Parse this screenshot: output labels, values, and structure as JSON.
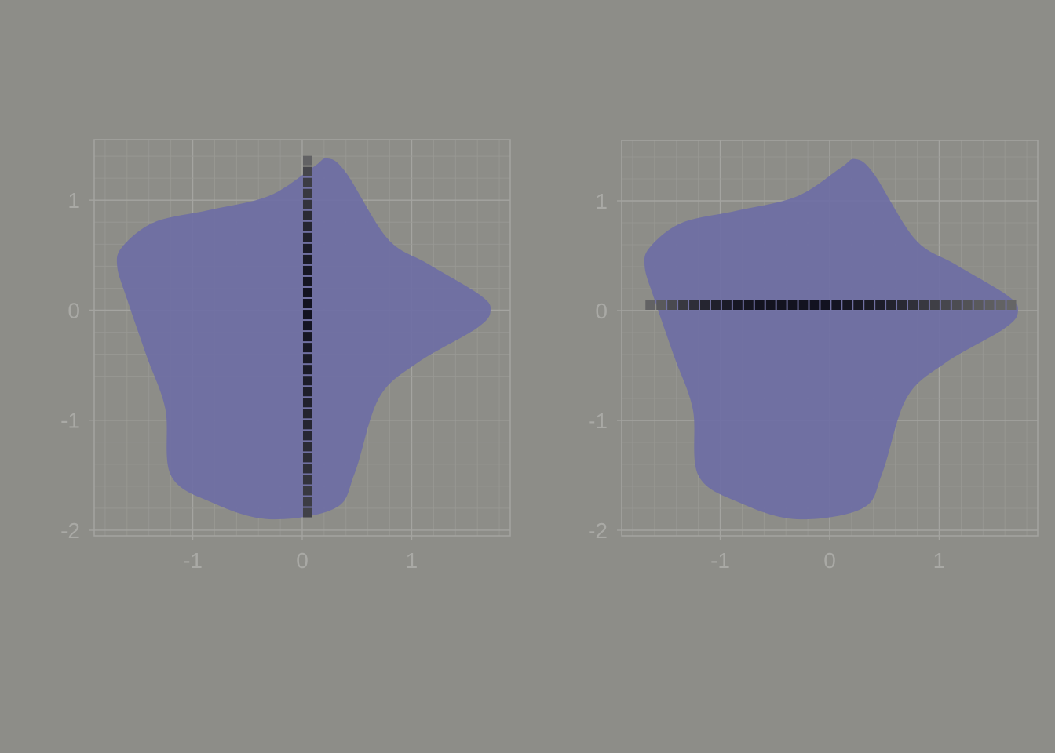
{
  "colors": {
    "background": "#8d8d88",
    "grid_major": "#a4a4a0",
    "grid_minor": "#999994",
    "tick_text": "#a9a9a5",
    "shape_fill": "#6e6ea4",
    "marker_dark": "#121220",
    "marker_fade": "#707070"
  },
  "chart_data": [
    {
      "type": "scatter",
      "title": "",
      "xlabel": "",
      "ylabel": "",
      "xlim": [
        -1.9,
        1.9
      ],
      "ylim": [
        -2.05,
        1.55
      ],
      "x_ticks": [
        -1,
        0,
        1
      ],
      "x_tick_labels": [
        "-1",
        "0",
        "1"
      ],
      "y_ticks": [
        -2,
        -1,
        0,
        1
      ],
      "y_tick_labels": [
        "-2",
        "-1",
        "0",
        "1"
      ],
      "grid": true,
      "minor_grid_step": 0.2,
      "shape_outline": [
        [
          -1.69,
          0.4
        ],
        [
          -1.64,
          0.58
        ],
        [
          -1.35,
          0.8
        ],
        [
          -0.85,
          0.91
        ],
        [
          -0.3,
          1.04
        ],
        [
          0.1,
          1.3
        ],
        [
          0.23,
          1.38
        ],
        [
          0.4,
          1.25
        ],
        [
          0.78,
          0.65
        ],
        [
          1.15,
          0.42
        ],
        [
          1.62,
          0.14
        ],
        [
          1.72,
          0.0
        ],
        [
          1.6,
          -0.16
        ],
        [
          1.05,
          -0.48
        ],
        [
          0.7,
          -0.8
        ],
        [
          0.48,
          -1.48
        ],
        [
          0.3,
          -1.8
        ],
        [
          -0.3,
          -1.9
        ],
        [
          -0.82,
          -1.75
        ],
        [
          -1.2,
          -1.5
        ],
        [
          -1.25,
          -0.9
        ],
        [
          -1.42,
          -0.42
        ],
        [
          -1.6,
          0.1
        ]
      ],
      "series": [
        {
          "orientation": "vertical",
          "x": [
            0.05,
            0.05,
            0.05,
            0.05,
            0.05,
            0.05,
            0.05,
            0.05,
            0.05,
            0.05,
            0.05,
            0.05,
            0.05,
            0.05,
            0.05,
            0.05,
            0.05,
            0.05,
            0.05,
            0.05,
            0.05,
            0.05,
            0.05,
            0.05,
            0.05,
            0.05,
            0.05,
            0.05,
            0.05,
            0.05,
            0.05,
            0.05,
            0.05
          ],
          "y": [
            1.36,
            1.26,
            1.16,
            1.06,
            0.96,
            0.86,
            0.76,
            0.66,
            0.56,
            0.46,
            0.36,
            0.26,
            0.16,
            0.06,
            -0.04,
            -0.14,
            -0.24,
            -0.34,
            -0.44,
            -0.54,
            -0.64,
            -0.74,
            -0.84,
            -0.94,
            -1.04,
            -1.14,
            -1.24,
            -1.34,
            -1.44,
            -1.54,
            -1.64,
            -1.74,
            -1.84
          ],
          "intensity": [
            0.15,
            0.45,
            0.55,
            0.6,
            0.65,
            0.75,
            0.8,
            0.85,
            0.9,
            0.92,
            0.95,
            0.97,
            1.0,
            1.0,
            1.0,
            0.98,
            0.96,
            0.94,
            0.92,
            0.9,
            0.88,
            0.86,
            0.84,
            0.82,
            0.8,
            0.78,
            0.75,
            0.72,
            0.7,
            0.65,
            0.6,
            0.55,
            0.5
          ]
        }
      ]
    },
    {
      "type": "scatter",
      "title": "",
      "xlabel": "",
      "ylabel": "",
      "xlim": [
        -1.9,
        1.9
      ],
      "ylim": [
        -2.05,
        1.55
      ],
      "x_ticks": [
        -1,
        0,
        1
      ],
      "x_tick_labels": [
        "-1",
        "0",
        "1"
      ],
      "y_ticks": [
        -2,
        -1,
        0,
        1
      ],
      "y_tick_labels": [
        "-2",
        "-1",
        "0",
        "1"
      ],
      "grid": true,
      "minor_grid_step": 0.2,
      "shape_outline": [
        [
          -1.69,
          0.4
        ],
        [
          -1.64,
          0.58
        ],
        [
          -1.35,
          0.8
        ],
        [
          -0.85,
          0.91
        ],
        [
          -0.3,
          1.04
        ],
        [
          0.1,
          1.3
        ],
        [
          0.23,
          1.38
        ],
        [
          0.4,
          1.25
        ],
        [
          0.78,
          0.65
        ],
        [
          1.15,
          0.42
        ],
        [
          1.62,
          0.14
        ],
        [
          1.72,
          0.0
        ],
        [
          1.6,
          -0.16
        ],
        [
          1.05,
          -0.48
        ],
        [
          0.7,
          -0.8
        ],
        [
          0.48,
          -1.48
        ],
        [
          0.3,
          -1.8
        ],
        [
          -0.3,
          -1.9
        ],
        [
          -0.82,
          -1.75
        ],
        [
          -1.2,
          -1.5
        ],
        [
          -1.25,
          -0.9
        ],
        [
          -1.42,
          -0.42
        ],
        [
          -1.6,
          0.1
        ]
      ],
      "series": [
        {
          "orientation": "horizontal",
          "x": [
            -1.64,
            -1.54,
            -1.44,
            -1.34,
            -1.24,
            -1.14,
            -1.04,
            -0.94,
            -0.84,
            -0.74,
            -0.64,
            -0.54,
            -0.44,
            -0.34,
            -0.24,
            -0.14,
            -0.04,
            0.06,
            0.16,
            0.26,
            0.36,
            0.46,
            0.56,
            0.66,
            0.76,
            0.86,
            0.96,
            1.06,
            1.16,
            1.26,
            1.36,
            1.46,
            1.56,
            1.66
          ],
          "y": [
            0.05,
            0.05,
            0.05,
            0.05,
            0.05,
            0.05,
            0.05,
            0.05,
            0.05,
            0.05,
            0.05,
            0.05,
            0.05,
            0.05,
            0.05,
            0.05,
            0.05,
            0.05,
            0.05,
            0.05,
            0.05,
            0.05,
            0.05,
            0.05,
            0.05,
            0.05,
            0.05,
            0.05,
            0.05,
            0.05,
            0.05,
            0.05,
            0.05,
            0.05
          ],
          "intensity": [
            0.15,
            0.25,
            0.4,
            0.6,
            0.7,
            0.8,
            0.85,
            0.9,
            0.95,
            0.97,
            1.0,
            1.0,
            1.0,
            1.0,
            1.0,
            1.0,
            1.0,
            0.98,
            0.96,
            0.94,
            0.92,
            0.88,
            0.82,
            0.76,
            0.68,
            0.6,
            0.52,
            0.45,
            0.38,
            0.32,
            0.25,
            0.2,
            0.15,
            0.12
          ]
        }
      ]
    }
  ]
}
